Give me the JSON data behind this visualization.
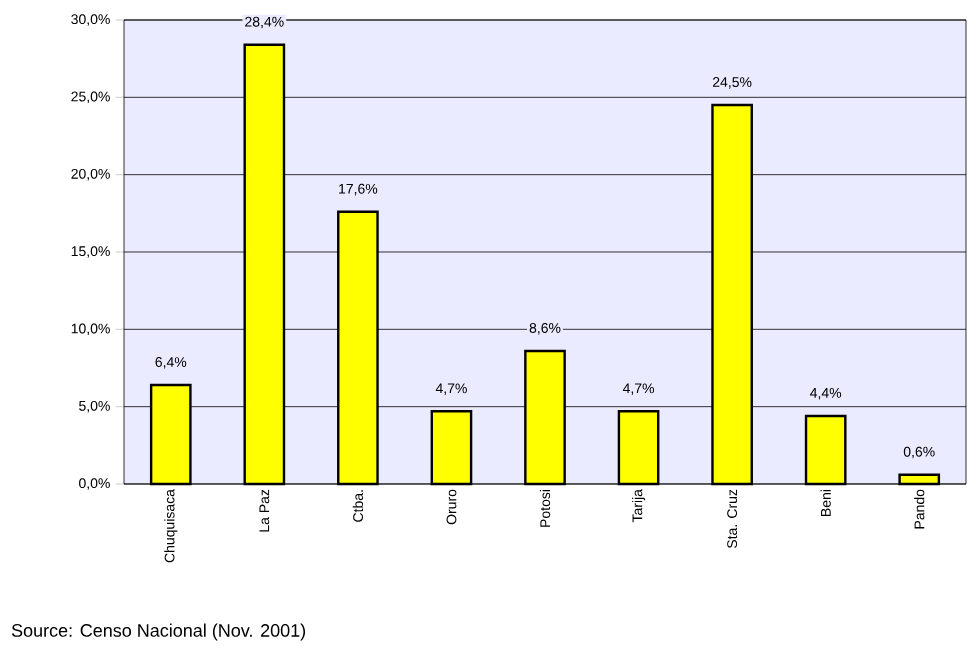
{
  "chart_data": {
    "type": "bar",
    "categories": [
      "Chuquisaca",
      "La Paz",
      "Ctba.",
      "Oruro",
      "Potosi",
      "Tarija",
      "Sta. Cruz",
      "Beni",
      "Pando"
    ],
    "values": [
      6.4,
      28.4,
      17.6,
      4.7,
      8.6,
      4.7,
      24.5,
      4.4,
      0.6
    ],
    "value_labels": [
      "6,4%",
      "28,4%",
      "17,6%",
      "4,7%",
      "8,6%",
      "4,7%",
      "24,5%",
      "4,4%",
      "0,6%"
    ],
    "color": "#ffff00",
    "ylim": [
      0,
      30
    ],
    "yticks": [
      {
        "value": 0,
        "label": "0,0%"
      },
      {
        "value": 5,
        "label": "5,0%"
      },
      {
        "value": 10,
        "label": "10,0%"
      },
      {
        "value": 15,
        "label": "15,0%"
      },
      {
        "value": 20,
        "label": "20,0%"
      },
      {
        "value": 25,
        "label": "25,0%"
      },
      {
        "value": 30,
        "label": "30,0%"
      }
    ],
    "grid": "y",
    "annotations": [
      "Source: Censo Nacional (Nov. 2001)"
    ]
  }
}
